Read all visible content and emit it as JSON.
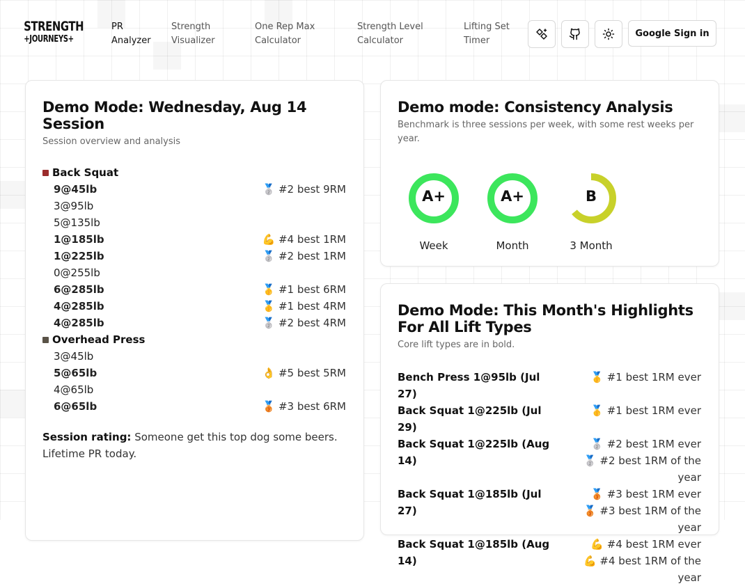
{
  "header": {
    "logo_line1": "STRENGTH",
    "logo_line2": "+JOURNEYS+",
    "nav": [
      {
        "label": "PR Analyzer",
        "active": true
      },
      {
        "label": "Strength Visualizer",
        "active": false
      },
      {
        "label": "One Rep Max Calculator",
        "active": false
      },
      {
        "label": "Strength Level Calculator",
        "active": false
      },
      {
        "label": "Lifting Set Timer",
        "active": false
      }
    ],
    "icons": [
      "ai-sparkle-icon",
      "github-icon",
      "sun-icon"
    ],
    "signin_label": "Google Sign in"
  },
  "session": {
    "title": "Demo Mode: Wednesday, Aug 14 Session",
    "subtitle": "Session overview and analysis",
    "lifts": [
      {
        "name": "Back Squat",
        "color": "#9b2c2c",
        "sets": [
          {
            "set": "9@45lb",
            "bold": true,
            "pr": "🥈 #2 best 9RM"
          },
          {
            "set": "3@95lb",
            "bold": false,
            "pr": ""
          },
          {
            "set": "5@135lb",
            "bold": false,
            "pr": ""
          },
          {
            "set": "1@185lb",
            "bold": true,
            "pr": "💪 #4 best 1RM"
          },
          {
            "set": "1@225lb",
            "bold": true,
            "pr": "🥈 #2 best 1RM"
          },
          {
            "set": "0@255lb",
            "bold": false,
            "pr": ""
          },
          {
            "set": "6@285lb",
            "bold": true,
            "pr": "🥇 #1 best 6RM"
          },
          {
            "set": "4@285lb",
            "bold": true,
            "pr": "🥇 #1 best 4RM"
          },
          {
            "set": "4@285lb",
            "bold": true,
            "pr": "🥈 #2 best 4RM"
          }
        ]
      },
      {
        "name": "Overhead Press",
        "color": "#5a5347",
        "sets": [
          {
            "set": "3@45lb",
            "bold": false,
            "pr": ""
          },
          {
            "set": "5@65lb",
            "bold": true,
            "pr": "👌 #5 best 5RM"
          },
          {
            "set": "4@65lb",
            "bold": false,
            "pr": ""
          },
          {
            "set": "6@65lb",
            "bold": true,
            "pr": "🥉 #3 best 6RM"
          }
        ]
      }
    ],
    "rating_label": "Session rating:",
    "rating_text": "Someone get this top dog some beers. Lifetime PR today."
  },
  "consistency": {
    "title": "Demo mode: Consistency Analysis",
    "subtitle": "Benchmark is three sessions per week, with some rest weeks per year.",
    "gauges": [
      {
        "grade": "A+",
        "label": "Week",
        "fraction": 1.0,
        "color": "#3ce65c"
      },
      {
        "grade": "A+",
        "label": "Month",
        "fraction": 1.0,
        "color": "#3ce65c"
      },
      {
        "grade": "B",
        "label": "3 Month",
        "fraction": 0.64,
        "color": "#c8d12a"
      }
    ]
  },
  "highlights": {
    "title": "Demo Mode: This Month's Highlights For All Lift Types",
    "subtitle": "Core lift types are in bold.",
    "items": [
      {
        "lift": "Bench Press 1@95lb (Jul 27)",
        "prs": [
          "🥇 #1 best 1RM ever"
        ]
      },
      {
        "lift": "Back Squat 1@225lb (Jul 29)",
        "prs": [
          "🥇 #1 best 1RM ever"
        ]
      },
      {
        "lift": "Back Squat 1@225lb (Aug 14)",
        "prs": [
          "🥈 #2 best 1RM ever",
          "🥈 #2 best 1RM of the year"
        ]
      },
      {
        "lift": "Back Squat 1@185lb (Jul 27)",
        "prs": [
          "🥉 #3 best 1RM ever",
          "🥉 #3 best 1RM of the year"
        ]
      },
      {
        "lift": "Back Squat 1@185lb (Aug 14)",
        "prs": [
          "💪 #4 best 1RM ever",
          "💪 #4 best 1RM of the year"
        ]
      }
    ]
  }
}
